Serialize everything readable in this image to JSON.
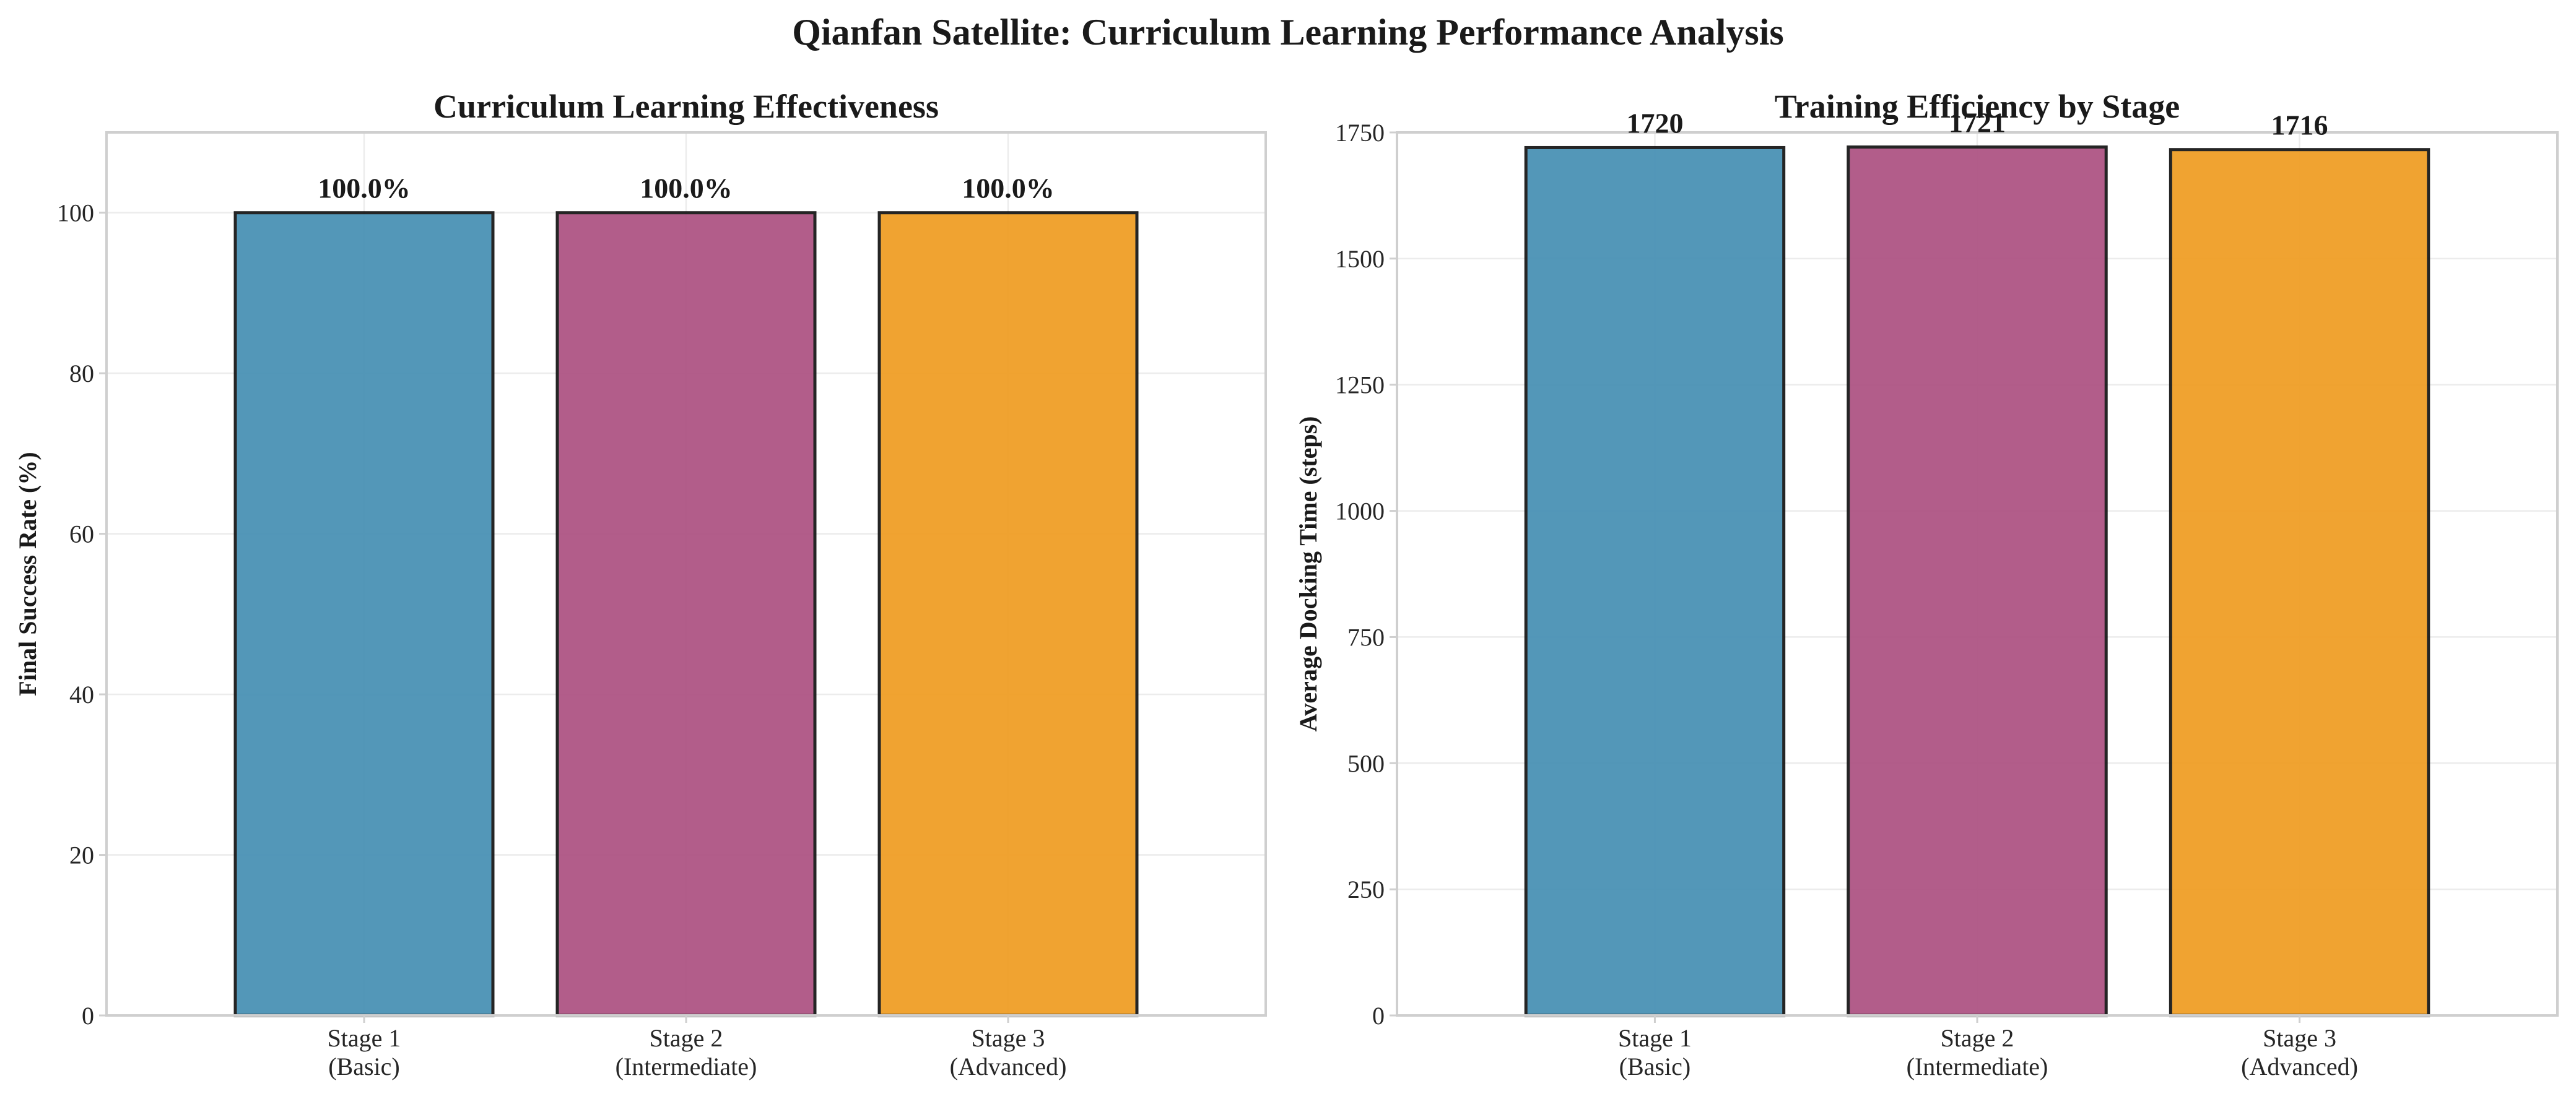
{
  "figure": {
    "title": "Qianfan Satellite: Curriculum Learning Performance Analysis"
  },
  "chart_data": [
    {
      "type": "bar",
      "title": "Curriculum Learning Effectiveness",
      "xlabel": "",
      "ylabel": "Final Success Rate (%)",
      "categories": [
        [
          "Stage 1",
          "(Basic)"
        ],
        [
          "Stage 2",
          "(Intermediate)"
        ],
        [
          "Stage 3",
          "(Advanced)"
        ]
      ],
      "values": [
        100.0,
        100.0,
        100.0
      ],
      "value_labels": [
        "100.0%",
        "100.0%",
        "100.0%"
      ],
      "colors": [
        "#4a92b5",
        "#ae5584",
        "#f09f26"
      ],
      "ylim": [
        0,
        110
      ],
      "yticks": [
        0,
        20,
        40,
        60,
        80,
        100
      ],
      "ytick_labels": [
        "0",
        "20",
        "40",
        "60",
        "80",
        "100"
      ],
      "grid": true,
      "legend": "none"
    },
    {
      "type": "bar",
      "title": "Training Efficiency by Stage",
      "xlabel": "",
      "ylabel": "Average Docking Time (steps)",
      "categories": [
        [
          "Stage 1",
          "(Basic)"
        ],
        [
          "Stage 2",
          "(Intermediate)"
        ],
        [
          "Stage 3",
          "(Advanced)"
        ]
      ],
      "values": [
        1720,
        1721,
        1716
      ],
      "value_labels": [
        "1720",
        "1721",
        "1716"
      ],
      "colors": [
        "#4a92b5",
        "#ae5584",
        "#f09f26"
      ],
      "ylim": [
        0,
        1750
      ],
      "yticks": [
        0,
        250,
        500,
        750,
        1000,
        1250,
        1500,
        1750
      ],
      "ytick_labels": [
        "0",
        "250",
        "500",
        "750",
        "1000",
        "1250",
        "1500",
        "1750"
      ],
      "grid": true,
      "legend": "none"
    }
  ]
}
